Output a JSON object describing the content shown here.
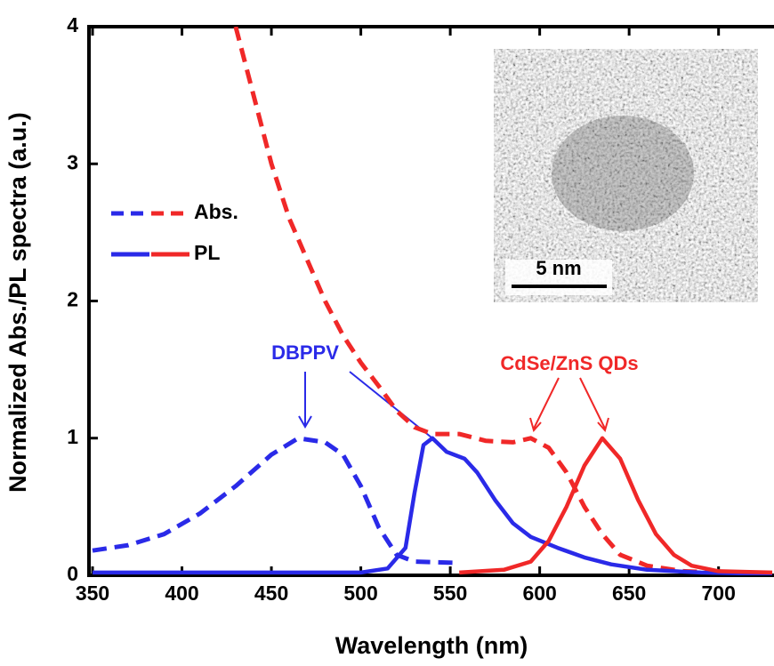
{
  "chart_data": {
    "type": "line",
    "xlabel": "Wavelength (nm)",
    "ylabel": "Normalized Abs./PL spectra (a.u.)",
    "xlim": [
      348,
      731
    ],
    "ylim": [
      0,
      4
    ],
    "xticks": [
      350,
      400,
      450,
      500,
      550,
      600,
      650,
      700
    ],
    "yticks": [
      0,
      1,
      2,
      3,
      4
    ],
    "legend": [
      {
        "label": "Abs.",
        "dashed": true,
        "colors": [
          "#2a2ae8",
          "#f02828"
        ]
      },
      {
        "label": "PL",
        "dashed": false,
        "colors": [
          "#2a2ae8",
          "#f02828"
        ]
      }
    ],
    "series": [
      {
        "color": "#2a2ae8",
        "dashed": true,
        "x": [
          350,
          370,
          390,
          410,
          430,
          450,
          465,
          480,
          490,
          500,
          510,
          520,
          530,
          555
        ],
        "values": [
          0.18,
          0.22,
          0.3,
          0.45,
          0.65,
          0.88,
          1.0,
          0.97,
          0.88,
          0.65,
          0.35,
          0.15,
          0.1,
          0.09
        ]
      },
      {
        "color": "#f02828",
        "dashed": true,
        "x": [
          430,
          440,
          450,
          460,
          470,
          480,
          490,
          500,
          510,
          520,
          530,
          540,
          555,
          570,
          585,
          595,
          605,
          615,
          625,
          635,
          645,
          660,
          680,
          700
        ],
        "values": [
          4.0,
          3.5,
          3.0,
          2.6,
          2.3,
          2.0,
          1.75,
          1.55,
          1.38,
          1.2,
          1.08,
          1.03,
          1.03,
          0.98,
          0.97,
          1.0,
          0.93,
          0.75,
          0.5,
          0.3,
          0.15,
          0.07,
          0.03,
          0.02
        ]
      },
      {
        "color": "#2a2ae8",
        "dashed": false,
        "x": [
          350,
          500,
          515,
          525,
          530,
          535,
          540,
          548,
          558,
          565,
          575,
          585,
          595,
          610,
          625,
          640,
          660,
          690,
          730
        ],
        "values": [
          0.02,
          0.02,
          0.05,
          0.2,
          0.6,
          0.95,
          1.0,
          0.9,
          0.85,
          0.75,
          0.55,
          0.38,
          0.28,
          0.2,
          0.13,
          0.08,
          0.04,
          0.02,
          0.01
        ]
      },
      {
        "color": "#f02828",
        "dashed": false,
        "x": [
          555,
          580,
          595,
          605,
          615,
          625,
          635,
          645,
          655,
          665,
          675,
          685,
          700,
          730
        ],
        "values": [
          0.02,
          0.04,
          0.1,
          0.25,
          0.5,
          0.8,
          1.0,
          0.85,
          0.55,
          0.3,
          0.15,
          0.07,
          0.03,
          0.02
        ]
      }
    ],
    "annotations": [
      {
        "text": "DBPPV",
        "color": "#2a2ae8"
      },
      {
        "text": "CdSe/ZnS QDs",
        "color": "#f02828"
      }
    ],
    "inset_scale_bar": "5 nm"
  }
}
